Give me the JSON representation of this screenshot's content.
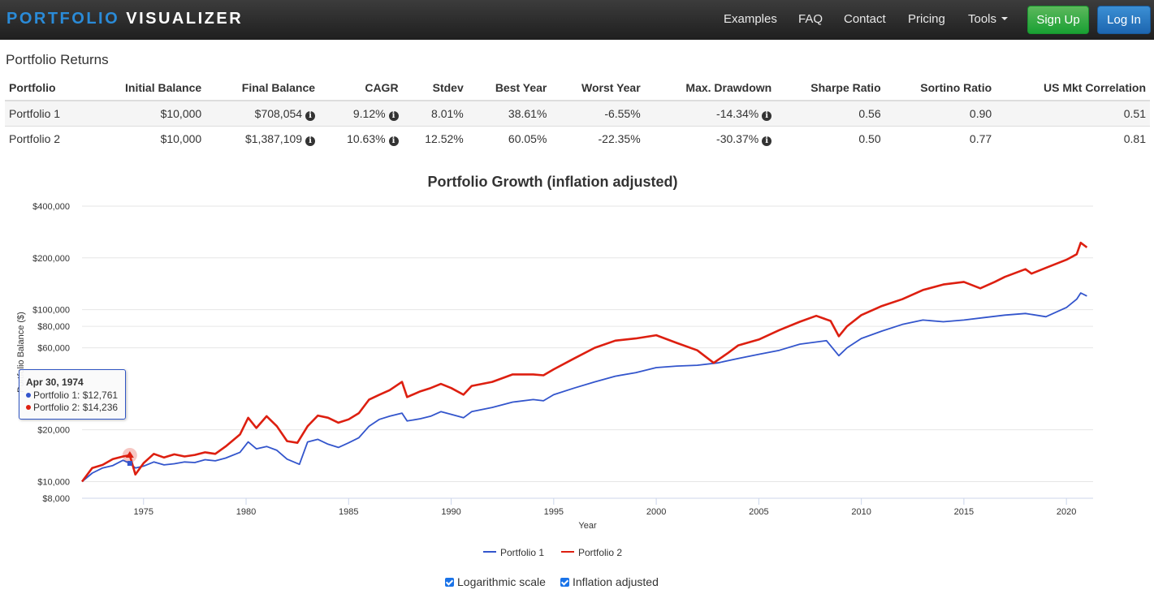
{
  "nav": {
    "brand_part1": "PORTFOLIO",
    "brand_part2": "VISUALIZER",
    "links": [
      "Examples",
      "FAQ",
      "Contact",
      "Pricing",
      "Tools"
    ],
    "signup": "Sign Up",
    "login": "Log In"
  },
  "returns": {
    "title": "Portfolio Returns",
    "headers": [
      "Portfolio",
      "Initial Balance",
      "Final Balance",
      "CAGR",
      "Stdev",
      "Best Year",
      "Worst Year",
      "Max. Drawdown",
      "Sharpe Ratio",
      "Sortino Ratio",
      "US Mkt Correlation"
    ],
    "rows": [
      [
        "Portfolio 1",
        "$10,000",
        "$708,054",
        "9.12%",
        "8.01%",
        "38.61%",
        "-6.55%",
        "-14.34%",
        "0.56",
        "0.90",
        "0.51"
      ],
      [
        "Portfolio 2",
        "$10,000",
        "$1,387,109",
        "10.63%",
        "12.52%",
        "60.05%",
        "-22.35%",
        "-30.37%",
        "0.50",
        "0.77",
        "0.81"
      ]
    ]
  },
  "chart_data": {
    "type": "line",
    "title": "Portfolio Growth (inflation adjusted)",
    "xlabel": "Year",
    "ylabel": "Portfolio Balance ($)",
    "y_scale": "log",
    "y_ticks": [
      8000,
      10000,
      20000,
      60000,
      80000,
      100000,
      200000,
      400000
    ],
    "y_tick_labels": [
      "$8,000",
      "$10,000",
      "$20,000",
      "$60,000",
      "$80,000",
      "$100,000",
      "$200,000",
      "$400,000"
    ],
    "x_ticks": [
      1975,
      1980,
      1985,
      1990,
      1995,
      2000,
      2005,
      2010,
      2015,
      2020
    ],
    "xlim": [
      1972,
      2021.3
    ],
    "series": [
      {
        "name": "Portfolio 1",
        "color": "#3355cc",
        "points": [
          [
            1972.0,
            10000
          ],
          [
            1972.5,
            11200
          ],
          [
            1973.0,
            12000
          ],
          [
            1973.5,
            12400
          ],
          [
            1974.0,
            13300
          ],
          [
            1974.33,
            12761
          ],
          [
            1974.6,
            12000
          ],
          [
            1975.0,
            12300
          ],
          [
            1975.5,
            13000
          ],
          [
            1976.0,
            12500
          ],
          [
            1976.5,
            12700
          ],
          [
            1977.0,
            13000
          ],
          [
            1977.5,
            12900
          ],
          [
            1978.0,
            13400
          ],
          [
            1978.5,
            13200
          ],
          [
            1979.0,
            13700
          ],
          [
            1979.7,
            14800
          ],
          [
            1980.1,
            17000
          ],
          [
            1980.5,
            15500
          ],
          [
            1981.0,
            16000
          ],
          [
            1981.5,
            15200
          ],
          [
            1982.0,
            13500
          ],
          [
            1982.6,
            12600
          ],
          [
            1983.0,
            17000
          ],
          [
            1983.5,
            17600
          ],
          [
            1984.0,
            16500
          ],
          [
            1984.5,
            15800
          ],
          [
            1985.0,
            16800
          ],
          [
            1985.5,
            18000
          ],
          [
            1986.0,
            21000
          ],
          [
            1986.5,
            23000
          ],
          [
            1987.0,
            24000
          ],
          [
            1987.6,
            25000
          ],
          [
            1987.85,
            22500
          ],
          [
            1988.5,
            23200
          ],
          [
            1989.0,
            24000
          ],
          [
            1989.5,
            25500
          ],
          [
            1990.0,
            24600
          ],
          [
            1990.6,
            23500
          ],
          [
            1991.0,
            25500
          ],
          [
            1992.0,
            27000
          ],
          [
            1993.0,
            29000
          ],
          [
            1994.0,
            30000
          ],
          [
            1994.5,
            29500
          ],
          [
            1995.0,
            32000
          ],
          [
            1996.0,
            35000
          ],
          [
            1997.0,
            38000
          ],
          [
            1998.0,
            41000
          ],
          [
            1999.0,
            43000
          ],
          [
            2000.0,
            46000
          ],
          [
            2001.0,
            47000
          ],
          [
            2002.0,
            47500
          ],
          [
            2003.0,
            49000
          ],
          [
            2004.0,
            52000
          ],
          [
            2005.0,
            55000
          ],
          [
            2006.0,
            58000
          ],
          [
            2007.0,
            63000
          ],
          [
            2008.3,
            66000
          ],
          [
            2008.9,
            54000
          ],
          [
            2009.3,
            60000
          ],
          [
            2010.0,
            68000
          ],
          [
            2011.0,
            75000
          ],
          [
            2012.0,
            82000
          ],
          [
            2013.0,
            87000
          ],
          [
            2014.0,
            85000
          ],
          [
            2015.0,
            87000
          ],
          [
            2016.0,
            90000
          ],
          [
            2017.0,
            93000
          ],
          [
            2018.0,
            95000
          ],
          [
            2019.0,
            91000
          ],
          [
            2020.0,
            103000
          ],
          [
            2020.5,
            115000
          ],
          [
            2020.7,
            125000
          ],
          [
            2021.0,
            120000
          ]
        ]
      },
      {
        "name": "Portfolio 2",
        "color": "#dd1f10",
        "points": [
          [
            1972.0,
            10000
          ],
          [
            1972.5,
            12000
          ],
          [
            1973.0,
            12500
          ],
          [
            1973.5,
            13500
          ],
          [
            1974.0,
            14000
          ],
          [
            1974.33,
            14236
          ],
          [
            1974.6,
            11000
          ],
          [
            1975.0,
            12800
          ],
          [
            1975.5,
            14500
          ],
          [
            1976.0,
            13800
          ],
          [
            1976.5,
            14400
          ],
          [
            1977.0,
            14000
          ],
          [
            1977.5,
            14300
          ],
          [
            1978.0,
            14800
          ],
          [
            1978.5,
            14500
          ],
          [
            1979.0,
            16000
          ],
          [
            1979.7,
            18800
          ],
          [
            1980.1,
            23500
          ],
          [
            1980.5,
            20500
          ],
          [
            1981.0,
            24000
          ],
          [
            1981.5,
            21000
          ],
          [
            1982.0,
            17200
          ],
          [
            1982.5,
            16800
          ],
          [
            1983.0,
            21000
          ],
          [
            1983.5,
            24200
          ],
          [
            1984.0,
            23500
          ],
          [
            1984.5,
            22000
          ],
          [
            1985.0,
            23000
          ],
          [
            1985.5,
            25000
          ],
          [
            1986.0,
            30000
          ],
          [
            1986.5,
            32000
          ],
          [
            1987.0,
            34000
          ],
          [
            1987.6,
            38000
          ],
          [
            1987.85,
            31000
          ],
          [
            1988.5,
            33500
          ],
          [
            1989.0,
            35000
          ],
          [
            1989.5,
            37000
          ],
          [
            1990.0,
            35000
          ],
          [
            1990.6,
            32000
          ],
          [
            1991.0,
            36000
          ],
          [
            1992.0,
            38000
          ],
          [
            1993.0,
            42000
          ],
          [
            1994.0,
            42000
          ],
          [
            1994.5,
            41500
          ],
          [
            1995.0,
            45000
          ],
          [
            1996.0,
            52000
          ],
          [
            1997.0,
            60000
          ],
          [
            1998.0,
            66000
          ],
          [
            1999.0,
            68000
          ],
          [
            2000.0,
            71000
          ],
          [
            2001.0,
            64000
          ],
          [
            2002.0,
            58000
          ],
          [
            2002.8,
            49000
          ],
          [
            2003.5,
            56000
          ],
          [
            2004.0,
            62000
          ],
          [
            2005.0,
            67000
          ],
          [
            2006.0,
            76000
          ],
          [
            2007.0,
            85000
          ],
          [
            2007.8,
            92000
          ],
          [
            2008.5,
            86000
          ],
          [
            2008.9,
            70000
          ],
          [
            2009.3,
            80000
          ],
          [
            2010.0,
            93000
          ],
          [
            2011.0,
            105000
          ],
          [
            2012.0,
            115000
          ],
          [
            2013.0,
            130000
          ],
          [
            2014.0,
            140000
          ],
          [
            2015.0,
            145000
          ],
          [
            2015.8,
            133000
          ],
          [
            2016.5,
            145000
          ],
          [
            2017.0,
            155000
          ],
          [
            2018.0,
            172000
          ],
          [
            2018.3,
            162000
          ],
          [
            2019.0,
            175000
          ],
          [
            2020.0,
            195000
          ],
          [
            2020.5,
            210000
          ],
          [
            2020.7,
            245000
          ],
          [
            2021.0,
            230000
          ]
        ]
      }
    ],
    "tooltip": {
      "date": "Apr 30, 1974",
      "lines": [
        "Portfolio 1: $12,761",
        "Portfolio 2: $14,236"
      ]
    }
  },
  "options": {
    "log_label": "Logarithmic scale",
    "inflation_label": "Inflation adjusted"
  }
}
